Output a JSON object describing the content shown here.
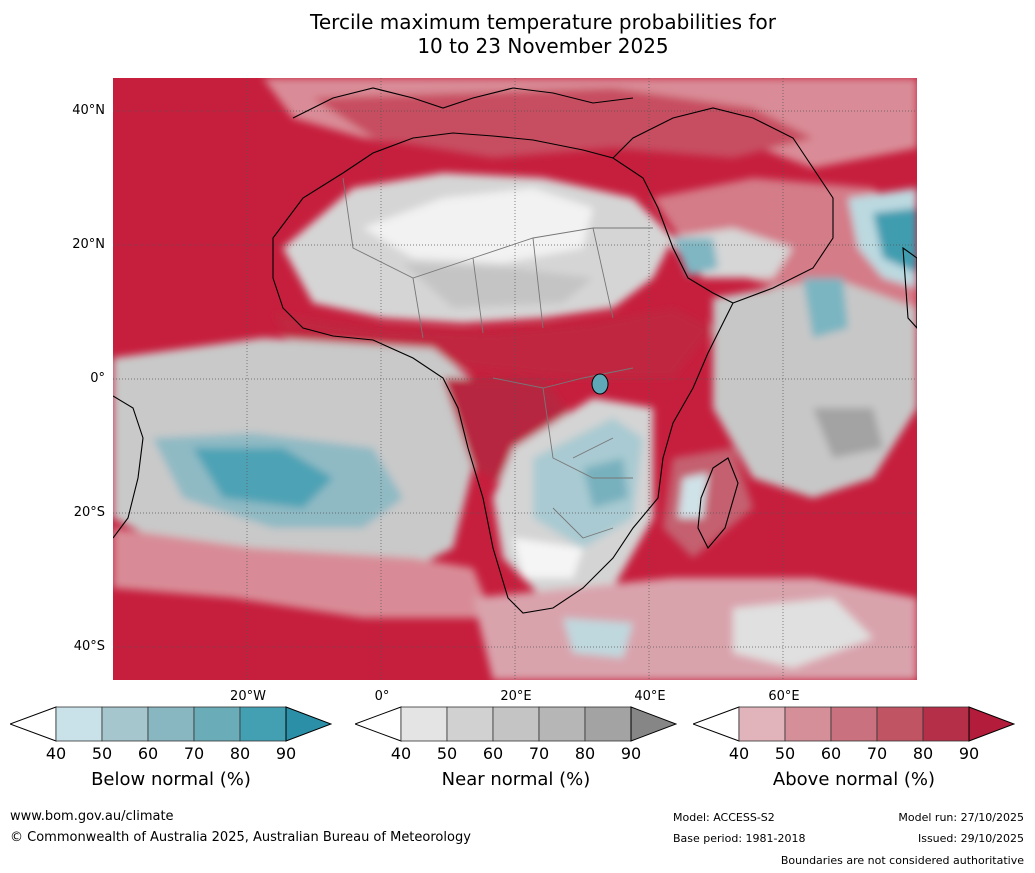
{
  "title": {
    "line1": "Tercile maximum temperature probabilities for",
    "line2": "10 to 23 November 2025"
  },
  "axes": {
    "latitudes": [
      "40°N",
      "20°N",
      "0°",
      "20°S",
      "40°S"
    ],
    "longitudes": [
      "20°W",
      "0°",
      "20°E",
      "40°E",
      "60°E"
    ]
  },
  "legend": {
    "below": {
      "label": "Below normal (%)",
      "ticks": [
        "40",
        "50",
        "60",
        "70",
        "80",
        "90"
      ],
      "colors": [
        "#ffffff",
        "#c9e1e8",
        "#a5c6cc",
        "#88b6c1",
        "#6aadb9",
        "#439fb2",
        "#2c8fa8"
      ]
    },
    "near": {
      "label": "Near normal (%)",
      "ticks": [
        "40",
        "50",
        "60",
        "70",
        "80",
        "90"
      ],
      "colors": [
        "#ffffff",
        "#e4e4e4",
        "#d1d1d1",
        "#c4c4c4",
        "#b6b6b6",
        "#a3a3a3",
        "#868686"
      ]
    },
    "above": {
      "label": "Above normal (%)",
      "ticks": [
        "40",
        "50",
        "60",
        "70",
        "80",
        "90"
      ],
      "colors": [
        "#ffffff",
        "#e1b4bb",
        "#d48f99",
        "#c9717e",
        "#c15463",
        "#b52f48",
        "#b31c3a"
      ]
    }
  },
  "footer": {
    "website": "www.bom.gov.au/climate",
    "copyright": "© Commonwealth of Australia 2025, Australian Bureau of Meteorology",
    "model": "Model: ACCESS-S2",
    "base_period": "Base period: 1981-2018",
    "model_run": "Model run: 27/10/2025",
    "issued": "Issued: 29/10/2025",
    "disclaimer": "Boundaries are not considered authoritative"
  }
}
